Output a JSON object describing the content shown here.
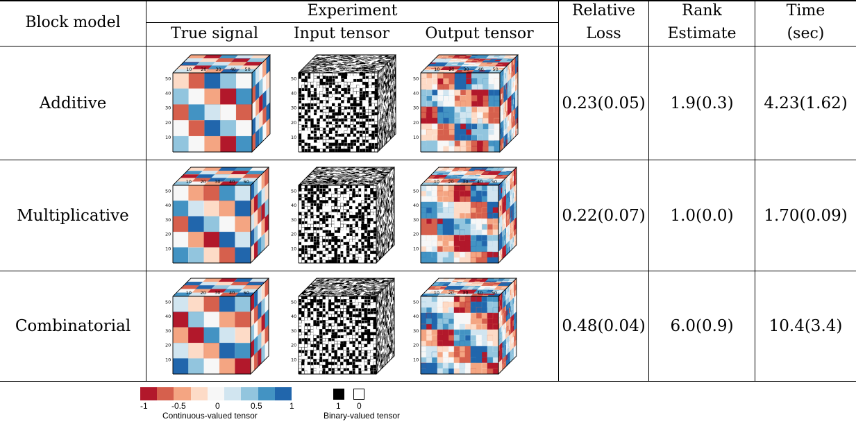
{
  "header": {
    "block_model": "Block model",
    "experiment": "Experiment",
    "true_signal": "True signal",
    "input_tensor": "Input tensor",
    "output_tensor": "Output tensor",
    "relative_line1": "Relative",
    "relative_line2": "Loss",
    "rank_line1": "Rank",
    "rank_line2": "Estimate",
    "time_line1": "Time",
    "time_line2": "(sec)"
  },
  "rows": [
    {
      "model": "Additive",
      "loss": "0.23(0.05)",
      "rank": "1.9(0.3)",
      "time": "4.23(1.62)"
    },
    {
      "model": "Multiplicative",
      "loss": "0.22(0.07)",
      "rank": "1.0(0.0)",
      "time": "1.70(0.09)"
    },
    {
      "model": "Combinatorial",
      "loss": "0.48(0.04)",
      "rank": "6.0(0.9)",
      "time": "10.4(3.4)"
    }
  ],
  "cube_axis_ticks": [
    "10",
    "20",
    "30",
    "40",
    "50"
  ],
  "legend": {
    "continuous_ticks": [
      "-1",
      "-0.5",
      "0",
      "0.5",
      "1"
    ],
    "continuous_label": "Continuous-valued tensor",
    "continuous_colors": [
      "#b2182b",
      "#d6604d",
      "#f4a582",
      "#fddbc7",
      "#f7f7f7",
      "#d1e5f0",
      "#92c5de",
      "#4393c3",
      "#2166ac"
    ],
    "binary_values": [
      "1",
      "0"
    ],
    "binary_label": "Binary-valued tensor"
  }
}
